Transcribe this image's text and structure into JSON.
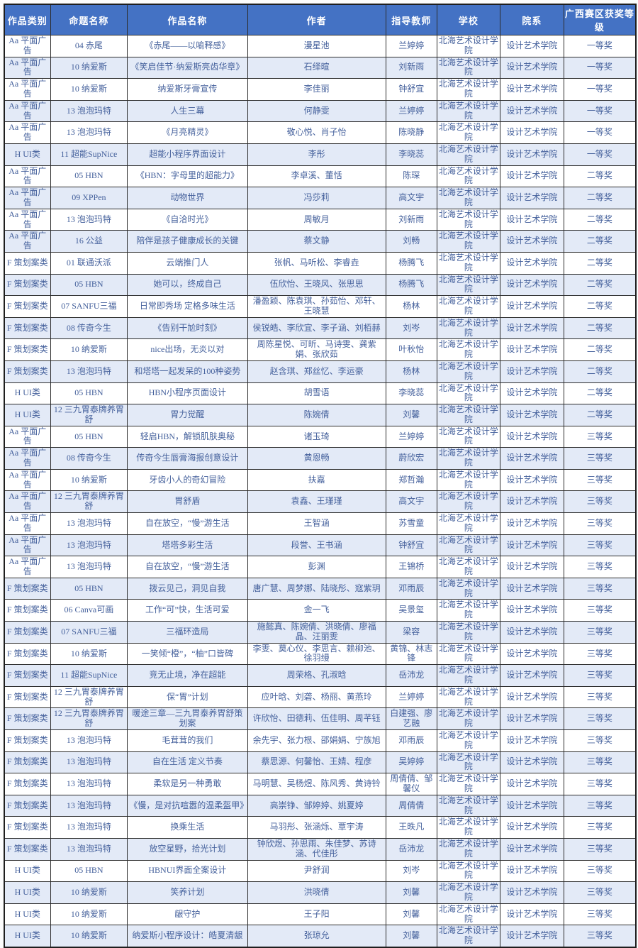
{
  "table": {
    "columns": [
      "作品类别",
      "命题名称",
      "作品名称",
      "作者",
      "指导教师",
      "学校",
      "院系",
      "广西赛区获奖等级"
    ],
    "rows": [
      [
        "Aa 平面广告",
        "04 赤尾",
        "《赤尾——以喻释感》",
        "漫星池",
        "兰婷婷",
        "北海艺术设计学院",
        "设计艺术学院",
        "一等奖"
      ],
      [
        "Aa 平面广告",
        "10 纳爱斯",
        "《笑启佳节·纳爱斯亮齿华章》",
        "石绎暄",
        "刘新雨",
        "北海艺术设计学院",
        "设计艺术学院",
        "一等奖"
      ],
      [
        "Aa 平面广告",
        "10 纳爱斯",
        "纳爱斯牙膏宣传",
        "李佳丽",
        "钟舒宜",
        "北海艺术设计学院",
        "设计艺术学院",
        "一等奖"
      ],
      [
        "Aa 平面广告",
        "13 泡泡玛特",
        "人生三幕",
        "何静雯",
        "兰婷婷",
        "北海艺术设计学院",
        "设计艺术学院",
        "一等奖"
      ],
      [
        "Aa 平面广告",
        "13 泡泡玛特",
        "《月亮精灵》",
        "敬心悦、肖子怡",
        "陈晓静",
        "北海艺术设计学院",
        "设计艺术学院",
        "一等奖"
      ],
      [
        "H UI类",
        "11 超能SupNice",
        "超能小程序界面设计",
        "李彤",
        "李晓蕊",
        "北海艺术设计学院",
        "设计艺术学院",
        "一等奖"
      ],
      [
        "Aa 平面广告",
        "05 HBN",
        "《HBN：字母里的超能力》",
        "李卓溪、董恬",
        "陈琛",
        "北海艺术设计学院",
        "设计艺术学院",
        "二等奖"
      ],
      [
        "Aa 平面广告",
        "09 XPPen",
        "动物世界",
        "冯莎莉",
        "高文宇",
        "北海艺术设计学院",
        "设计艺术学院",
        "二等奖"
      ],
      [
        "Aa 平面广告",
        "13 泡泡玛特",
        "《自洽时光》",
        "周敏月",
        "刘新雨",
        "北海艺术设计学院",
        "设计艺术学院",
        "二等奖"
      ],
      [
        "Aa 平面广告",
        "16 公益",
        "陪伴是孩子健康成长的关键",
        "蔡文静",
        "刘畅",
        "北海艺术设计学院",
        "设计艺术学院",
        "二等奖"
      ],
      [
        "F 策划案类",
        "01 联通沃派",
        "云端推门人",
        "张帆、马听松、李睿垚",
        "杨腾飞",
        "北海艺术设计学院",
        "设计艺术学院",
        "二等奖"
      ],
      [
        "F 策划案类",
        "05 HBN",
        "她可以，终成自己",
        "伍欣怡、王晓风、张思思",
        "杨腾飞",
        "北海艺术设计学院",
        "设计艺术学院",
        "二等奖"
      ],
      [
        "F 策划案类",
        "07 SANFU三福",
        "日常即秀场 定格多味生活",
        "潘盈颖、陈袁琪、孙茹怡、邓轩、王晓慧",
        "杨林",
        "北海艺术设计学院",
        "设计艺术学院",
        "二等奖"
      ],
      [
        "F 策划案类",
        "08 传奇今生",
        "《告别干尬时刻》",
        "侯锐皓、李欣宜、李子涵、刘栢赫",
        "刘岑",
        "北海艺术设计学院",
        "设计艺术学院",
        "二等奖"
      ],
      [
        "F 策划案类",
        "10 纳爱斯",
        "nice出场，无炎以对",
        "周陈星悦、可昕、马诗雯、龚紫娟、张欣茹",
        "叶秋怡",
        "北海艺术设计学院",
        "设计艺术学院",
        "二等奖"
      ],
      [
        "F 策划案类",
        "13 泡泡玛特",
        "和塔塔一起发呆的100种姿势",
        "赵含琪、郑丝忆、李运豪",
        "杨林",
        "北海艺术设计学院",
        "设计艺术学院",
        "二等奖"
      ],
      [
        "H UI类",
        "05 HBN",
        "HBN小程序页面设计",
        "胡雪语",
        "李晓蕊",
        "北海艺术设计学院",
        "设计艺术学院",
        "二等奖"
      ],
      [
        "H UI类",
        "12 三九胃泰牌养胃舒",
        "胃力觉醒",
        "陈婉倩",
        "刘馨",
        "北海艺术设计学院",
        "设计艺术学院",
        "二等奖"
      ],
      [
        "Aa 平面广告",
        "05 HBN",
        "轻启HBN，解锁肌肤奥秘",
        "诸玉琦",
        "兰婷婷",
        "北海艺术设计学院",
        "设计艺术学院",
        "三等奖"
      ],
      [
        "Aa 平面广告",
        "08 传奇今生",
        "传奇今生唇膏海报创意设计",
        "黄恩畅",
        "蔚欣宏",
        "北海艺术设计学院",
        "设计艺术学院",
        "三等奖"
      ],
      [
        "Aa 平面广告",
        "10 纳爱斯",
        "牙齿小人的奇幻冒险",
        "扶嘉",
        "郑哲瀚",
        "北海艺术设计学院",
        "设计艺术学院",
        "三等奖"
      ],
      [
        "Aa 平面广告",
        "12 三九胃泰牌养胃舒",
        "胃舒盾",
        "袁鑫、王瑾瑾",
        "高文宇",
        "北海艺术设计学院",
        "设计艺术学院",
        "三等奖"
      ],
      [
        "Aa 平面广告",
        "13 泡泡玛特",
        "自在放空，“慢”游生活",
        "王智涵",
        "苏雪童",
        "北海艺术设计学院",
        "设计艺术学院",
        "三等奖"
      ],
      [
        "Aa 平面广告",
        "13 泡泡玛特",
        "塔塔多彩生活",
        "段誉、王书涵",
        "钟舒宜",
        "北海艺术设计学院",
        "设计艺术学院",
        "三等奖"
      ],
      [
        "Aa 平面广告",
        "13 泡泡玛特",
        "自在放空，“慢”游生活",
        "彭渊",
        "王锦桥",
        "北海艺术设计学院",
        "设计艺术学院",
        "三等奖"
      ],
      [
        "F 策划案类",
        "05 HBN",
        "拨云见己，洞见自我",
        "唐广慧、周梦娜、陆晓彤、寇紫玥",
        "邓雨辰",
        "北海艺术设计学院",
        "设计艺术学院",
        "三等奖"
      ],
      [
        "F 策划案类",
        "06 Canva可画",
        "工作“可”快，生活可爱",
        "金一飞",
        "吴景玺",
        "北海艺术设计学院",
        "设计艺术学院",
        "三等奖"
      ],
      [
        "F 策划案类",
        "07 SANFU三福",
        "三福环造局",
        "施懿真、陈婉倩、洪晓倩、廖福晶、汪丽雯",
        "梁容",
        "北海艺术设计学院",
        "设计艺术学院",
        "三等奖"
      ],
      [
        "F 策划案类",
        "10 纳爱斯",
        "一笑倾“橙”，“柚”口皆碑",
        "李雯、莫心仪、李思言、赖柳池、徐羽缦",
        "黄锦、林志锋",
        "北海艺术设计学院",
        "设计艺术学院",
        "三等奖"
      ],
      [
        "F 策划案类",
        "11 超能SupNice",
        "竞无止境，净在超能",
        "周荣格、孔淑晗",
        "岳沛龙",
        "北海艺术设计学院",
        "设计艺术学院",
        "三等奖"
      ],
      [
        "F 策划案类",
        "12 三九胃泰牌养胃舒",
        "保“胃”计划",
        "应叶晗、刘砻、杨丽、黄燕玲",
        "兰婷婷",
        "北海艺术设计学院",
        "设计艺术学院",
        "三等奖"
      ],
      [
        "F 策划案类",
        "12 三九胃泰牌养胃舒",
        "暖途三章—三九胃泰养胃舒策划案",
        "许欣怡、田德莉、伍佳明、周芊钰",
        "白建强、廖艺融",
        "北海艺术设计学院",
        "设计艺术学院",
        "三等奖"
      ],
      [
        "F 策划案类",
        "13 泡泡玛特",
        "毛茸茸的我们",
        "余先宇、张力根、邵娟娟、宁族旭",
        "邓雨辰",
        "北海艺术设计学院",
        "设计艺术学院",
        "三等奖"
      ],
      [
        "F 策划案类",
        "13 泡泡玛特",
        "自在生活 定义节奏",
        "蔡思源、何馨怡、王婧、程彦",
        "吴婷婷",
        "北海艺术设计学院",
        "设计艺术学院",
        "三等奖"
      ],
      [
        "F 策划案类",
        "13 泡泡玛特",
        "柔软是另一种勇敢",
        "马明慧、吴杨煜、陈风秀、黄诗铃",
        "周倩倩、邹馨仪",
        "北海艺术设计学院",
        "设计艺术学院",
        "三等奖"
      ],
      [
        "F 策划案类",
        "13 泡泡玛特",
        "《慢，是对抗喧嚣的温柔盔甲》",
        "高崇铮、邹婷婷、姚夏婷",
        "周倩倩",
        "北海艺术设计学院",
        "设计艺术学院",
        "三等奖"
      ],
      [
        "F 策划案类",
        "13 泡泡玛特",
        "换乘生活",
        "马羽彤、张涵烁、覃宇涛",
        "王昳凡",
        "北海艺术设计学院",
        "设计艺术学院",
        "三等奖"
      ],
      [
        "F 策划案类",
        "13 泡泡玛特",
        "放空星野，拾光计划",
        "钟欣煜、孙思雨、朱佳梦、苏诗涵、代佳彤",
        "岳沛龙",
        "北海艺术设计学院",
        "设计艺术学院",
        "三等奖"
      ],
      [
        "H UI类",
        "05 HBN",
        "HBNUI界面全案设计",
        "尹舒润",
        "刘岑",
        "北海艺术设计学院",
        "设计艺术学院",
        "三等奖"
      ],
      [
        "H UI类",
        "10 纳爱斯",
        "笑养计划",
        "洪晓倩",
        "刘馨",
        "北海艺术设计学院",
        "设计艺术学院",
        "三等奖"
      ],
      [
        "H UI类",
        "10 纳爱斯",
        "龈守护",
        "王子阳",
        "刘馨",
        "北海艺术设计学院",
        "设计艺术学院",
        "三等奖"
      ],
      [
        "H UI类",
        "10 纳爱斯",
        "纳爱斯小程序设计：皓夏清龈",
        "张琼允",
        "刘馨",
        "北海艺术设计学院",
        "设计艺术学院",
        "三等奖"
      ]
    ]
  },
  "colors": {
    "header_bg": "#4472c4",
    "header_text": "#ffffff",
    "row_stripe": "#e3eaf7",
    "body_text": "#45619c",
    "grid_line": "#2d2d2d"
  }
}
